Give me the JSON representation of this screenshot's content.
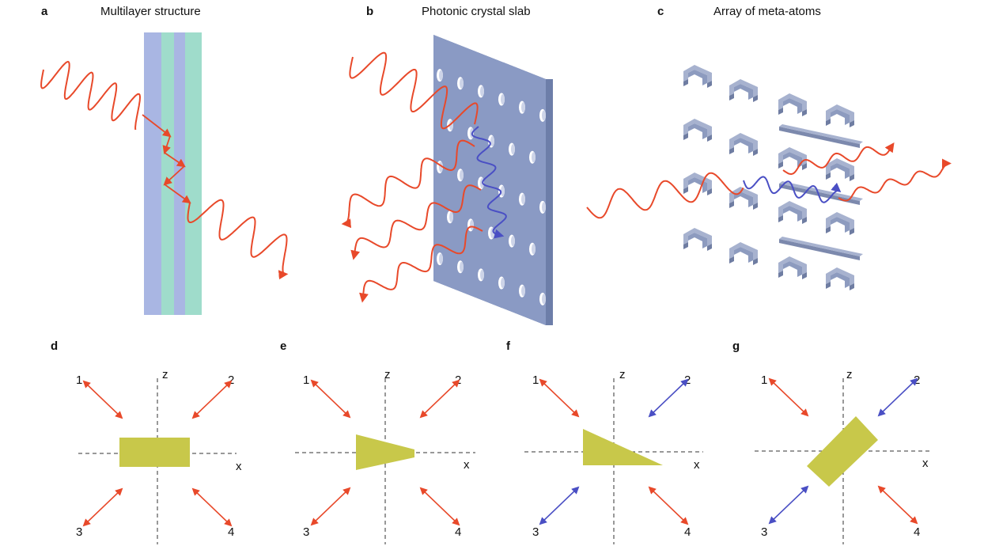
{
  "panels": {
    "a": {
      "letter": "a",
      "title": "Multilayer structure"
    },
    "b": {
      "letter": "b",
      "title": "Photonic crystal slab"
    },
    "c": {
      "letter": "c",
      "title": "Array of meta-atoms"
    },
    "d": {
      "letter": "d"
    },
    "e": {
      "letter": "e"
    },
    "f": {
      "letter": "f"
    },
    "g": {
      "letter": "g"
    }
  },
  "axes": {
    "z": "z",
    "x": "x"
  },
  "ports": [
    "1",
    "2",
    "3",
    "4"
  ],
  "colors": {
    "wave_red": "#e8492a",
    "wave_blue": "#4a4fc4",
    "layer_blue": "#a9b6e3",
    "layer_teal": "#9fdccb",
    "slab": "#8a9ac4",
    "slab_dark": "#6d7ea9",
    "meta_atom": "#8d9bbf",
    "shape_olive": "#c8c84a"
  },
  "port_colors": {
    "d": [
      "red",
      "red",
      "red",
      "red"
    ],
    "e": [
      "red",
      "red",
      "red",
      "red"
    ],
    "f": [
      "red",
      "blue",
      "blue",
      "red"
    ],
    "g": [
      "red",
      "blue",
      "blue",
      "red"
    ]
  }
}
